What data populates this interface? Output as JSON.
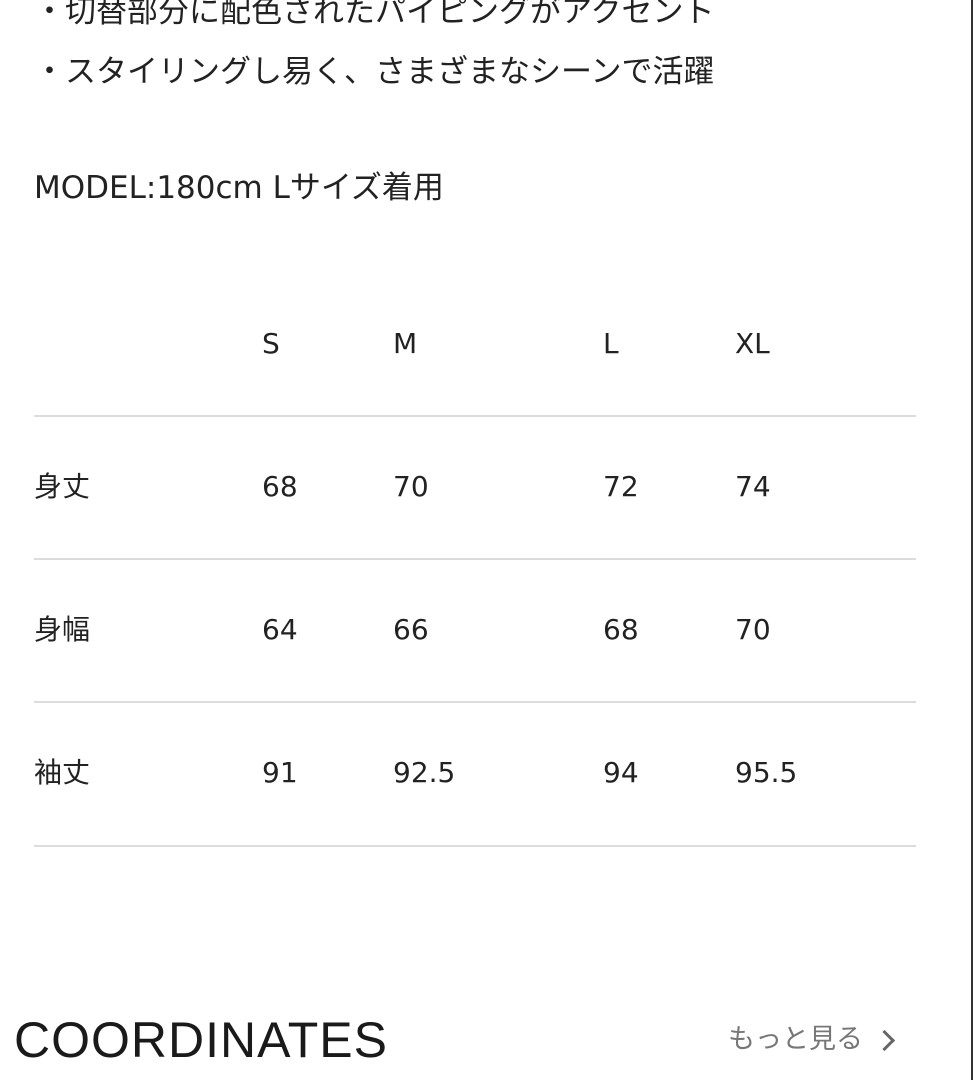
{
  "description": {
    "bullets": [
      "・切替部分に配色されたパイピングがアクセント",
      "・スタイリングし易く、さまざまなシーンで活躍"
    ],
    "model": "MODEL:180cm Lサイズ着用"
  },
  "size_table": {
    "headers": [
      "",
      "S",
      "M",
      "L",
      "XL"
    ],
    "rows": [
      {
        "label": "身丈",
        "values": [
          "68",
          "70",
          "72",
          "74"
        ]
      },
      {
        "label": "身幅",
        "values": [
          "64",
          "66",
          "68",
          "70"
        ]
      },
      {
        "label": "袖丈",
        "values": [
          "91",
          "92.5",
          "94",
          "95.5"
        ]
      }
    ]
  },
  "coordinates": {
    "title": "COORDINATES",
    "more_label": "もっと見る",
    "more_icon": "chevron-right-icon"
  }
}
